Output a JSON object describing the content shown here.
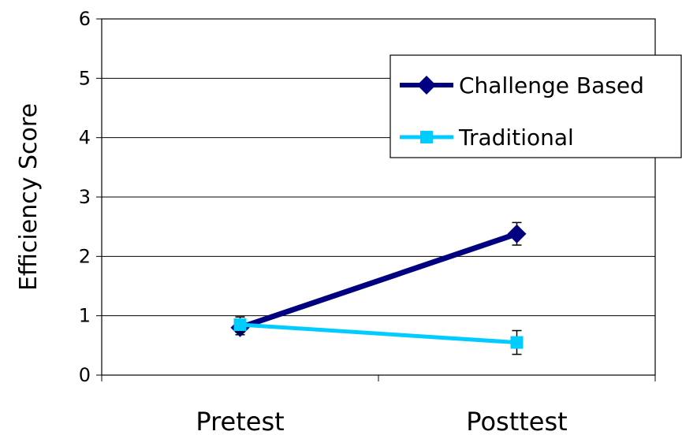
{
  "chart_data": {
    "type": "line",
    "title": "",
    "xlabel": "",
    "ylabel": "Efficiency Score",
    "categories": [
      "Pretest",
      "Posttest"
    ],
    "ylim": [
      0,
      6
    ],
    "yticks": [
      0,
      1,
      2,
      3,
      4,
      5,
      6
    ],
    "grid": true,
    "legend_position": "top-right",
    "series": [
      {
        "name": "Challenge Based",
        "values": [
          0.8,
          2.38
        ],
        "error": [
          0.12,
          0.19
        ],
        "color": "#000080",
        "marker": "diamond"
      },
      {
        "name": "Traditional",
        "values": [
          0.85,
          0.55
        ],
        "error": [
          0.13,
          0.2
        ],
        "color": "#00ccff",
        "marker": "square"
      }
    ]
  }
}
